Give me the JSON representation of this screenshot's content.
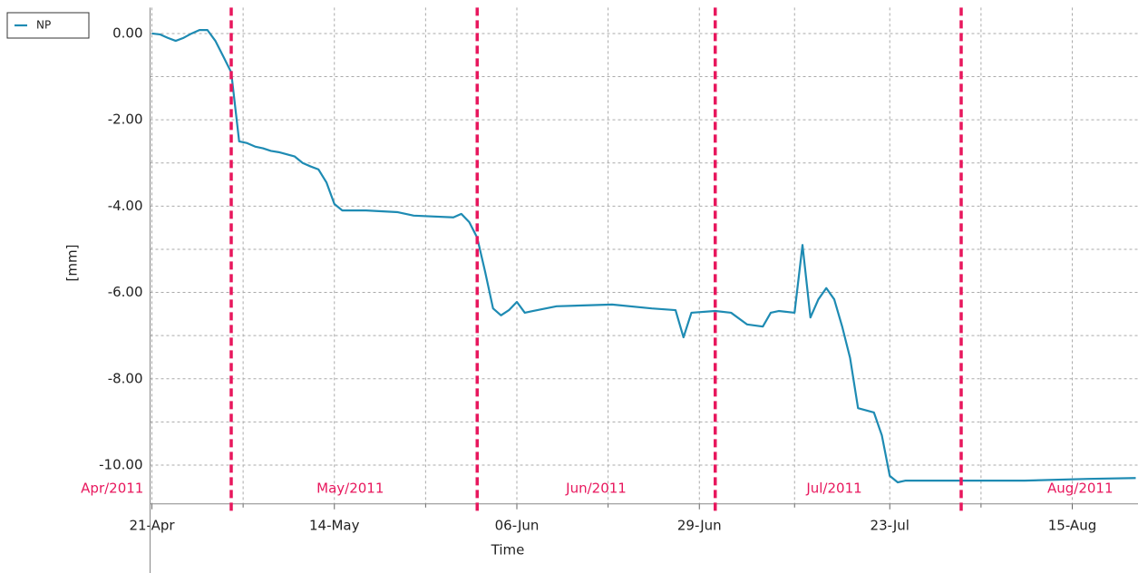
{
  "chart_data": {
    "type": "line",
    "x_label": "Time",
    "y_label": "[mm]",
    "x": [
      "2011-04-21",
      "2011-04-22",
      "2011-04-23",
      "2011-04-24",
      "2011-04-25",
      "2011-04-26",
      "2011-04-27",
      "2011-04-28",
      "2011-04-29",
      "2011-04-30",
      "2011-05-01",
      "2011-05-02",
      "2011-05-03",
      "2011-05-04",
      "2011-05-05",
      "2011-05-06",
      "2011-05-07",
      "2011-05-08",
      "2011-05-09",
      "2011-05-10",
      "2011-05-11",
      "2011-05-12",
      "2011-05-13",
      "2011-05-14",
      "2011-05-15",
      "2011-05-18",
      "2011-05-22",
      "2011-05-24",
      "2011-05-29",
      "2011-05-30",
      "2011-05-31",
      "2011-06-01",
      "2011-06-02",
      "2011-06-03",
      "2011-06-04",
      "2011-06-05",
      "2011-06-06",
      "2011-06-07",
      "2011-06-08",
      "2011-06-11",
      "2011-06-18",
      "2011-06-23",
      "2011-06-26",
      "2011-06-27",
      "2011-06-28",
      "2011-07-01",
      "2011-07-03",
      "2011-07-05",
      "2011-07-07",
      "2011-07-08",
      "2011-07-09",
      "2011-07-11",
      "2011-07-12",
      "2011-07-13",
      "2011-07-14",
      "2011-07-15",
      "2011-07-16",
      "2011-07-17",
      "2011-07-18",
      "2011-07-19",
      "2011-07-21",
      "2011-07-22",
      "2011-07-23",
      "2011-07-24",
      "2011-07-25",
      "2011-08-09",
      "2011-08-17",
      "2011-08-23"
    ],
    "series": [
      {
        "name": "NP",
        "color": "#1e8bb3",
        "values": [
          0,
          -0.02,
          -0.1,
          -0.17,
          -0.1,
          0.0,
          0.08,
          0.08,
          -0.17,
          -0.53,
          -0.9,
          -2.5,
          -2.54,
          -2.62,
          -2.66,
          -2.72,
          -2.75,
          -2.8,
          -2.85,
          -3.0,
          -3.08,
          -3.15,
          -3.45,
          -3.95,
          -4.1,
          -4.1,
          -4.14,
          -4.22,
          -4.26,
          -4.18,
          -4.37,
          -4.73,
          -5.52,
          -6.37,
          -6.53,
          -6.41,
          -6.22,
          -6.47,
          -6.43,
          -6.32,
          -6.28,
          -6.37,
          -6.41,
          -7.04,
          -6.47,
          -6.43,
          -6.47,
          -6.74,
          -6.79,
          -6.47,
          -6.43,
          -6.47,
          -4.9,
          -6.58,
          -6.16,
          -5.9,
          -6.16,
          -6.79,
          -7.52,
          -8.68,
          -8.78,
          -9.31,
          -10.25,
          -10.4,
          -10.36,
          -10.36,
          -10.32,
          -10.3
        ]
      }
    ],
    "xlim": [
      "2011-04-21",
      "2011-08-23"
    ],
    "xticks": [
      {
        "value": "2011-04-21",
        "label": "21-Apr"
      },
      {
        "value": "2011-05-14",
        "label": "14-May"
      },
      {
        "value": "2011-06-06",
        "label": "06-Jun"
      },
      {
        "value": "2011-06-29",
        "label": "29-Jun"
      },
      {
        "value": "2011-07-23",
        "label": "23-Jul"
      },
      {
        "value": "2011-08-15",
        "label": "15-Aug"
      }
    ],
    "ylim": [
      -10.9,
      0.6
    ],
    "yticks": [
      {
        "value": 0,
        "label": "0.00"
      },
      {
        "value": -2,
        "label": "-2.00"
      },
      {
        "value": -4,
        "label": "-4.00"
      },
      {
        "value": -6,
        "label": "-6.00"
      },
      {
        "value": -8,
        "label": "-8.00"
      },
      {
        "value": -10,
        "label": "-10.00"
      }
    ],
    "month_starts": [
      "2011-05-01",
      "2011-06-01",
      "2011-07-01",
      "2011-08-01"
    ],
    "month_marker_color": "#e8175d",
    "month_labels": [
      {
        "value": "2011-04-16",
        "label": "Apr/2011"
      },
      {
        "value": "2011-05-16",
        "label": "May/2011"
      },
      {
        "value": "2011-06-16",
        "label": "Jun/2011"
      },
      {
        "value": "2011-07-16",
        "label": "Jul/2011"
      },
      {
        "value": "2011-08-16",
        "label": "Aug/2011"
      }
    ],
    "grid": true,
    "legend": "top-left"
  }
}
